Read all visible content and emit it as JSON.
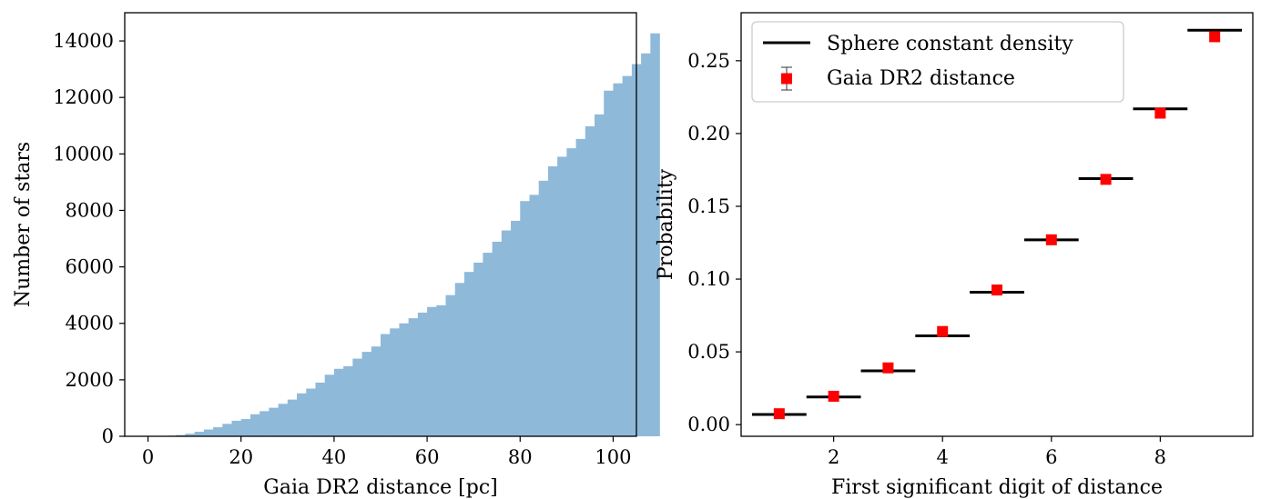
{
  "chart_data": [
    {
      "type": "bar",
      "xlabel": "Gaia DR2 distance [pc]",
      "ylabel": "Number of stars",
      "xlim": [
        -5,
        105
      ],
      "ylim": [
        0,
        15000
      ],
      "xticks": [
        0,
        20,
        40,
        60,
        80,
        100
      ],
      "yticks": [
        0,
        2000,
        4000,
        6000,
        8000,
        10000,
        12000,
        14000
      ],
      "bin_edges_start": 0,
      "bin_width": 2,
      "values": [
        0,
        5,
        20,
        45,
        90,
        160,
        240,
        320,
        440,
        550,
        610,
        780,
        890,
        1010,
        1150,
        1300,
        1520,
        1690,
        1900,
        2180,
        2390,
        2480,
        2750,
        2990,
        3180,
        3620,
        3820,
        4000,
        4180,
        4380,
        4580,
        4640,
        5000,
        5430,
        5820,
        6150,
        6500,
        6890,
        7290,
        7630,
        8330,
        8550,
        9050,
        9560,
        9900,
        10200,
        10530,
        10980,
        11400,
        12240,
        12500,
        12760,
        13180,
        13560,
        14270
      ],
      "color": "#8fb9d9",
      "grid": false
    },
    {
      "type": "scatter",
      "xlabel": "First significant digit of distance",
      "ylabel": "Probability",
      "xlim": [
        0.3,
        9.7
      ],
      "ylim": [
        -0.008,
        0.283
      ],
      "xticks": [
        2,
        4,
        6,
        8
      ],
      "yticks": [
        "0.00",
        "0.05",
        "0.10",
        "0.15",
        "0.20",
        "0.25"
      ],
      "legend_position": "top-left",
      "grid": false,
      "series": [
        {
          "name": "Sphere constant density",
          "style": "horizontal-segment",
          "color": "#000000",
          "x": [
            1,
            2,
            3,
            4,
            5,
            6,
            7,
            8,
            9
          ],
          "values": [
            0.007,
            0.019,
            0.037,
            0.061,
            0.091,
            0.127,
            0.169,
            0.217,
            0.271
          ]
        },
        {
          "name": "Gaia DR2 distance",
          "style": "square-marker-errorbar",
          "color": "#ff0000",
          "x": [
            1,
            2,
            3,
            4,
            5,
            6,
            7,
            8,
            9
          ],
          "values": [
            0.0075,
            0.0195,
            0.039,
            0.064,
            0.0925,
            0.127,
            0.1685,
            0.214,
            0.2665
          ],
          "errors": [
            0.001,
            0.001,
            0.0015,
            0.0015,
            0.0015,
            0.0015,
            0.0015,
            0.002,
            0.002
          ]
        }
      ]
    }
  ]
}
